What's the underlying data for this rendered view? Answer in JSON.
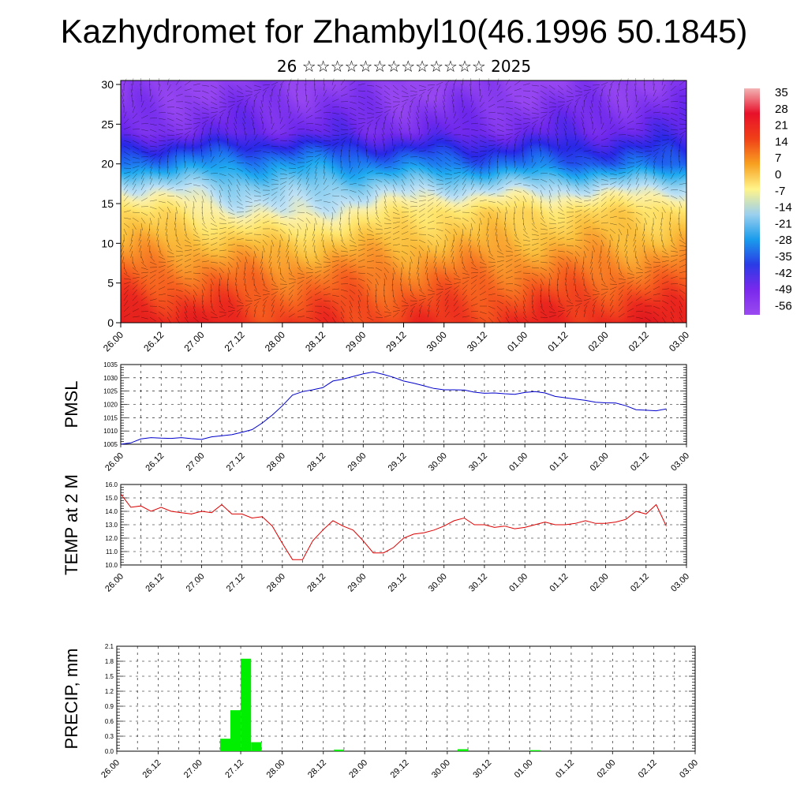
{
  "header": {
    "title": "Kazhydromet for Zhambyl10(46.1996 50.1845)",
    "subtitle": "26 ☆☆☆☆☆☆☆☆☆☆☆☆☆ 2025"
  },
  "time_labels": [
    "26.00",
    "26.12",
    "27.00",
    "27.12",
    "28.00",
    "28.12",
    "29.00",
    "29.12",
    "30.00",
    "30.12",
    "01.00",
    "01.12",
    "02.00",
    "02.12",
    "03.00"
  ],
  "colorbar": {
    "labels": [
      "35",
      "28",
      "21",
      "14",
      "7",
      "0",
      "-7",
      "-14",
      "-21",
      "-28",
      "-35",
      "-42",
      "-49",
      "-56"
    ],
    "colors": [
      "#f2b4b4",
      "#e8102a",
      "#f04018",
      "#f8a020",
      "#fff48a",
      "#9cd0ee",
      "#1a9cec",
      "#2a3ce6",
      "#7a28ec",
      "#9a4af0"
    ]
  },
  "chart_data": [
    {
      "type": "heatmap",
      "title": "",
      "xlabel": "",
      "ylabel": "",
      "x_ticks": [
        "26.00",
        "26.12",
        "27.00",
        "27.12",
        "28.00",
        "28.12",
        "29.00",
        "29.12",
        "30.00",
        "30.12",
        "01.00",
        "01.12",
        "02.00",
        "02.12",
        "03.00"
      ],
      "y_ticks": [
        0,
        5,
        10,
        15,
        20,
        25,
        30
      ],
      "ylim": [
        0,
        30.5
      ],
      "xlim": [
        0,
        14
      ],
      "colorbar_range": [
        -56,
        35
      ],
      "overlay": "wind barbs",
      "profiles": [
        {
          "time": 0,
          "temperature_by_level": [
            31,
            26,
            17,
            8,
            1,
            -12,
            -33,
            -52,
            -58
          ]
        },
        {
          "time": 4,
          "temperature_by_level": [
            23,
            20,
            14,
            3,
            -14,
            -20,
            -30,
            -49,
            -56
          ]
        },
        {
          "time": 8,
          "temperature_by_level": [
            24,
            21,
            15,
            6,
            -1,
            -16,
            -34,
            -51,
            -58
          ]
        },
        {
          "time": 13.5,
          "temperature_by_level": [
            28,
            24,
            16,
            7,
            0,
            -14,
            -36,
            -48,
            -56
          ]
        }
      ],
      "profile_levels": [
        0,
        2.5,
        6,
        10,
        14,
        17,
        20,
        24,
        30
      ]
    },
    {
      "type": "line",
      "ylabel": "PMSL",
      "ylim": [
        1005,
        1035
      ],
      "y_ticks": [
        1005,
        1010,
        1015,
        1020,
        1025,
        1030,
        1035
      ],
      "x": [
        0,
        0.25,
        0.5,
        0.75,
        1,
        1.25,
        1.5,
        1.75,
        2,
        2.25,
        2.5,
        2.75,
        3,
        3.25,
        3.5,
        3.75,
        4,
        4.25,
        4.5,
        4.75,
        5,
        5.25,
        5.5,
        5.75,
        6,
        6.25,
        6.5,
        6.75,
        7,
        7.25,
        7.5,
        7.75,
        8,
        8.25,
        8.5,
        8.75,
        9,
        9.25,
        9.5,
        9.75,
        10,
        10.25,
        10.5,
        10.75,
        11,
        11.25,
        11.5,
        11.75,
        12,
        12.25,
        12.5,
        12.75,
        13,
        13.25,
        13.5
      ],
      "series": [
        {
          "color": "#0000cc",
          "values": [
            1005,
            1005.5,
            1007,
            1007.5,
            1007.3,
            1007.2,
            1007.5,
            1007.1,
            1006.8,
            1007.8,
            1008.2,
            1008.6,
            1009.5,
            1010.5,
            1013,
            1016,
            1019.5,
            1023.5,
            1024.8,
            1025.5,
            1026.3,
            1028.8,
            1029.5,
            1030.5,
            1031.5,
            1032.2,
            1031.3,
            1030.2,
            1028.8,
            1028,
            1027,
            1026,
            1025.5,
            1025.5,
            1025.4,
            1024.6,
            1024.2,
            1024.3,
            1024,
            1023.8,
            1024.5,
            1024.8,
            1024.3,
            1023,
            1022.5,
            1022,
            1021.5,
            1020.8,
            1020.6,
            1020.5,
            1019.5,
            1018,
            1017.8,
            1017.6,
            1018.3
          ]
        }
      ]
    },
    {
      "type": "line",
      "ylabel": "TEMP at 2 M",
      "ylim": [
        10,
        16
      ],
      "y_ticks": [
        "10.0",
        "11.0",
        "12.0",
        "13.0",
        "14.0",
        "15.0",
        "16.0"
      ],
      "x": [
        0,
        0.25,
        0.5,
        0.75,
        1,
        1.25,
        1.5,
        1.75,
        2,
        2.25,
        2.5,
        2.75,
        3,
        3.25,
        3.5,
        3.75,
        4,
        4.25,
        4.5,
        4.75,
        5,
        5.25,
        5.5,
        5.75,
        6,
        6.25,
        6.5,
        6.75,
        7,
        7.25,
        7.5,
        7.75,
        8,
        8.25,
        8.5,
        8.75,
        9,
        9.25,
        9.5,
        9.75,
        10,
        10.25,
        10.5,
        10.75,
        11,
        11.25,
        11.5,
        11.75,
        12,
        12.25,
        12.5,
        12.75,
        13,
        13.25,
        13.5
      ],
      "series": [
        {
          "color": "#dd0000",
          "values": [
            15.3,
            14.3,
            14.4,
            14.0,
            14.3,
            14.0,
            13.9,
            13.8,
            14.0,
            13.9,
            14.5,
            13.8,
            13.8,
            13.5,
            13.6,
            12.9,
            11.6,
            10.4,
            10.4,
            11.8,
            12.6,
            13.3,
            12.9,
            12.6,
            11.8,
            10.9,
            10.9,
            11.3,
            12.0,
            12.3,
            12.4,
            12.6,
            12.9,
            13.3,
            13.5,
            13.0,
            13.0,
            12.8,
            12.9,
            12.7,
            12.8,
            13.0,
            13.2,
            13.0,
            13.0,
            13.1,
            13.3,
            13.1,
            13.1,
            13.2,
            13.4,
            14.0,
            13.8,
            14.5,
            12.9
          ]
        }
      ]
    },
    {
      "type": "bar",
      "ylabel": "PRECIP, mm",
      "ylim": [
        0,
        2.1
      ],
      "y_ticks": [
        "0.0",
        "0.3",
        "0.6",
        "0.9",
        "1.2",
        "1.5",
        "1.8",
        "2.1"
      ],
      "color": "#00ee00",
      "x": [
        2.625,
        2.875,
        3.125,
        3.375,
        5.375,
        8.375,
        10.125
      ],
      "values": [
        0.25,
        0.82,
        1.85,
        0.18,
        0.03,
        0.04,
        0.02
      ]
    }
  ]
}
